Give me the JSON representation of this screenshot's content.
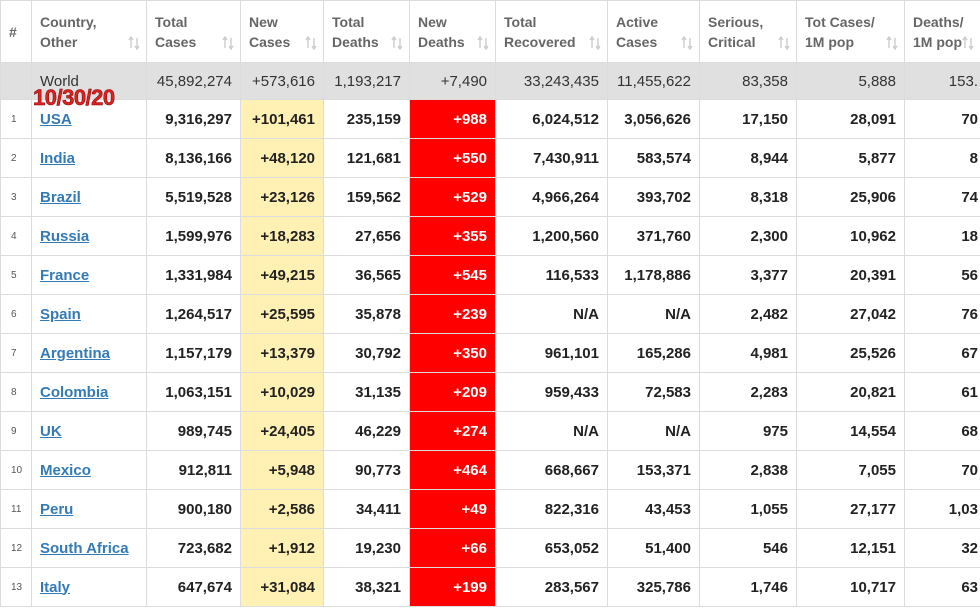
{
  "date_label": "10/30/20",
  "table": {
    "header": [
      [
        "#"
      ],
      [
        "Country,",
        "Other"
      ],
      [
        "Total",
        "Cases"
      ],
      [
        "New",
        "Cases"
      ],
      [
        "Total",
        "Deaths"
      ],
      [
        "New",
        "Deaths"
      ],
      [
        "Total",
        "Recovered"
      ],
      [
        "Active",
        "Cases"
      ],
      [
        "Serious,",
        "Critical"
      ],
      [
        "Tot Cases/",
        "1M pop"
      ],
      [
        "Deaths/",
        "1M pop"
      ]
    ],
    "world": [
      "",
      "World",
      "45,892,274",
      "+573,616",
      "1,193,217",
      "+7,490",
      "33,243,435",
      "11,455,622",
      "83,358",
      "5,888",
      "153."
    ],
    "rows": [
      [
        "1",
        "USA",
        "9,316,297",
        "+101,461",
        "235,159",
        "+988",
        "6,024,512",
        "3,056,626",
        "17,150",
        "28,091",
        "70"
      ],
      [
        "2",
        "India",
        "8,136,166",
        "+48,120",
        "121,681",
        "+550",
        "7,430,911",
        "583,574",
        "8,944",
        "5,877",
        "8"
      ],
      [
        "3",
        "Brazil",
        "5,519,528",
        "+23,126",
        "159,562",
        "+529",
        "4,966,264",
        "393,702",
        "8,318",
        "25,906",
        "74"
      ],
      [
        "4",
        "Russia",
        "1,599,976",
        "+18,283",
        "27,656",
        "+355",
        "1,200,560",
        "371,760",
        "2,300",
        "10,962",
        "18"
      ],
      [
        "5",
        "France",
        "1,331,984",
        "+49,215",
        "36,565",
        "+545",
        "116,533",
        "1,178,886",
        "3,377",
        "20,391",
        "56"
      ],
      [
        "6",
        "Spain",
        "1,264,517",
        "+25,595",
        "35,878",
        "+239",
        "N/A",
        "N/A",
        "2,482",
        "27,042",
        "76"
      ],
      [
        "7",
        "Argentina",
        "1,157,179",
        "+13,379",
        "30,792",
        "+350",
        "961,101",
        "165,286",
        "4,981",
        "25,526",
        "67"
      ],
      [
        "8",
        "Colombia",
        "1,063,151",
        "+10,029",
        "31,135",
        "+209",
        "959,433",
        "72,583",
        "2,283",
        "20,821",
        "61"
      ],
      [
        "9",
        "UK",
        "989,745",
        "+24,405",
        "46,229",
        "+274",
        "N/A",
        "N/A",
        "975",
        "14,554",
        "68"
      ],
      [
        "10",
        "Mexico",
        "912,811",
        "+5,948",
        "90,773",
        "+464",
        "668,667",
        "153,371",
        "2,838",
        "7,055",
        "70"
      ],
      [
        "11",
        "Peru",
        "900,180",
        "+2,586",
        "34,411",
        "+49",
        "822,316",
        "43,453",
        "1,055",
        "27,177",
        "1,03"
      ],
      [
        "12",
        "South Africa",
        "723,682",
        "+1,912",
        "19,230",
        "+66",
        "653,052",
        "51,400",
        "546",
        "12,151",
        "32"
      ],
      [
        "13",
        "Italy",
        "647,674",
        "+31,084",
        "38,321",
        "+199",
        "283,567",
        "325,786",
        "1,746",
        "10,717",
        "63"
      ]
    ]
  }
}
